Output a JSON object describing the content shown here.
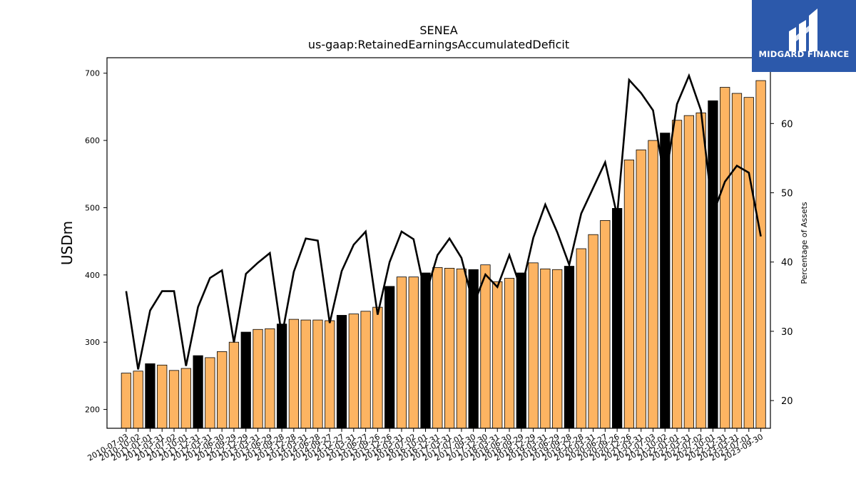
{
  "chart_data": {
    "type": "bar",
    "title": "SENEA",
    "subtitle": "us-gaap:RetainedEarningsAccumulatedDeficit",
    "ylabel": "USDm",
    "y2label": "Percentage of Assets",
    "ylim": [
      172,
      723
    ],
    "y2lim": [
      16.0,
      69.5
    ],
    "yticks": [
      200,
      300,
      400,
      500,
      600,
      700
    ],
    "y2ticks": [
      20,
      30,
      40,
      50,
      60
    ],
    "categories": [
      "2010-07-03",
      "2010-10-02",
      "2011-01-01",
      "2011-03-31",
      "2011-07-02",
      "2011-10-01",
      "2011-12-31",
      "2012-03-31",
      "2012-06-30",
      "2012-09-29",
      "2012-12-29",
      "2013-03-31",
      "2013-06-29",
      "2013-09-28",
      "2013-12-28",
      "2014-03-31",
      "2014-06-28",
      "2014-09-27",
      "2014-12-27",
      "2015-03-31",
      "2015-06-27",
      "2015-09-26",
      "2015-12-26",
      "2016-03-31",
      "2016-07-02",
      "2016-10-01",
      "2016-12-31",
      "2017-03-31",
      "2017-07-01",
      "2017-09-30",
      "2017-12-30",
      "2018-03-31",
      "2018-06-30",
      "2018-09-29",
      "2018-12-29",
      "2019-03-31",
      "2019-06-29",
      "2019-09-28",
      "2019-12-28",
      "2020-03-31",
      "2020-06-27",
      "2020-09-26",
      "2020-12-26",
      "2021-03-31",
      "2021-07-03",
      "2021-10-02",
      "2022-01-01",
      "2022-03-31",
      "2022-07-02",
      "2022-10-01",
      "2022-12-31",
      "2023-03-31",
      "2023-07-01",
      "2023-09-30"
    ],
    "series": [
      {
        "name": "",
        "kind": "bar",
        "axis": "left",
        "values": [
          254,
          257,
          268,
          266,
          258,
          261,
          280,
          277,
          286,
          300,
          315,
          319,
          320,
          327,
          334,
          333,
          333,
          332,
          340,
          342,
          346,
          352,
          383,
          397,
          397,
          403,
          411,
          410,
          409,
          408,
          415,
          390,
          395,
          403,
          418,
          409,
          408,
          413,
          439,
          460,
          481,
          499,
          571,
          586,
          600,
          611,
          630,
          637,
          641,
          659,
          679,
          670,
          664,
          689
        ],
        "highlight_color": "#000000",
        "highlight_indices": [
          2,
          6,
          10,
          13,
          18,
          22,
          25,
          29,
          33,
          37,
          41,
          45,
          49
        ]
      },
      {
        "name": "",
        "kind": "line",
        "axis": "right",
        "values": [
          35.8,
          24.5,
          33.0,
          35.8,
          35.8,
          25.0,
          33.5,
          37.7,
          38.8,
          28.4,
          38.3,
          39.9,
          41.3,
          29.3,
          38.6,
          43.4,
          43.1,
          31.2,
          38.7,
          42.5,
          44.4,
          32.4,
          40.0,
          44.4,
          43.3,
          35.2,
          41.0,
          43.4,
          40.6,
          33.8,
          38.2,
          36.4,
          41.0,
          36.0,
          43.5,
          48.3,
          44.3,
          39.6,
          47.0,
          50.7,
          54.4,
          46.7,
          66.3,
          64.4,
          61.9,
          51.5,
          62.8,
          66.9,
          61.9,
          46.9,
          51.6,
          53.9,
          52.9,
          43.7
        ]
      }
    ],
    "colors": {
      "bar": "#fdb462",
      "bar_highlight": "#000000",
      "line": "#000000"
    },
    "grid": false,
    "legend": "none"
  },
  "logo": {
    "text": "MIDGARD FINANCE",
    "background": "#2c59ab"
  }
}
